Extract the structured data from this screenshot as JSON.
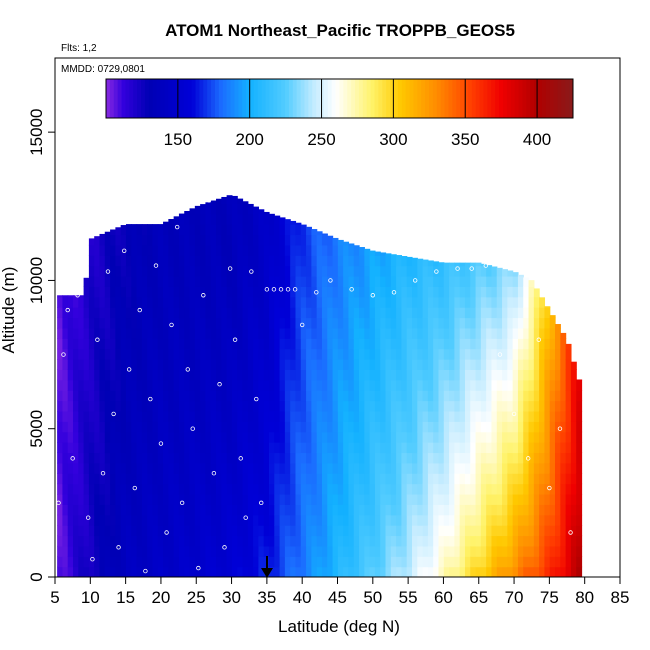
{
  "chart_data": {
    "type": "heatmap",
    "title": "ATOM1 Northeast_Pacific TROPPB_GEOS5",
    "flights_label": "Flts: 1,2",
    "dates_label": "MMDD: 0729,0801",
    "xlabel": "Latitude (deg N)",
    "ylabel": "Altitude (m)",
    "xlim": [
      5,
      85
    ],
    "ylim": [
      0,
      17500
    ],
    "x_ticks": [
      5,
      10,
      15,
      20,
      25,
      30,
      35,
      40,
      45,
      50,
      55,
      60,
      65,
      70,
      75,
      80,
      85
    ],
    "y_ticks": [
      0,
      5000,
      10000,
      15000
    ],
    "colorbar": {
      "range": [
        100,
        425
      ],
      "ticks": [
        150,
        200,
        250,
        300,
        350,
        400
      ],
      "stops": [
        {
          "v": 100,
          "c": "#8a2be2"
        },
        {
          "v": 112,
          "c": "#3300dd"
        },
        {
          "v": 130,
          "c": "#0000b4"
        },
        {
          "v": 160,
          "c": "#0000d8"
        },
        {
          "v": 180,
          "c": "#1b6bff"
        },
        {
          "v": 200,
          "c": "#13b1ff"
        },
        {
          "v": 225,
          "c": "#52ccff"
        },
        {
          "v": 245,
          "c": "#c5ecff"
        },
        {
          "v": 260,
          "c": "#ffffff"
        },
        {
          "v": 285,
          "c": "#fff36a"
        },
        {
          "v": 305,
          "c": "#ffc800"
        },
        {
          "v": 330,
          "c": "#ff8c00"
        },
        {
          "v": 355,
          "c": "#ff3c00"
        },
        {
          "v": 375,
          "c": "#f00000"
        },
        {
          "v": 400,
          "c": "#b00000"
        },
        {
          "v": 425,
          "c": "#8a1a1a"
        }
      ]
    },
    "profile": {
      "lat": [
        5,
        10,
        15,
        20,
        25,
        30,
        35,
        40,
        45,
        50,
        55,
        60,
        65,
        70,
        72.5,
        75,
        77.5,
        80
      ],
      "top_altitude": [
        0,
        11400,
        11900,
        11900,
        12500,
        12900,
        12300,
        11900,
        11400,
        11000,
        10800,
        10600,
        10600,
        10300,
        10000,
        9000,
        8000,
        6000
      ],
      "troppb_surface": [
        105,
        125,
        140,
        145,
        150,
        155,
        165,
        185,
        205,
        225,
        245,
        270,
        300,
        330,
        345,
        360,
        380,
        405
      ],
      "troppb_aloft": [
        105,
        120,
        130,
        135,
        135,
        135,
        145,
        170,
        185,
        195,
        205,
        210,
        220,
        230,
        260,
        300,
        340,
        380
      ]
    },
    "series": [
      {
        "type": "scatter",
        "x": [
          5.5,
          6.2,
          6.8,
          7.5,
          8.2,
          9.0,
          9.7,
          10.3,
          11.0,
          11.8,
          12.5,
          13.3,
          14.0,
          14.8,
          15.5,
          16.3,
          17.0,
          17.8,
          18.5,
          19.3,
          20.0,
          20.8,
          21.5,
          22.3,
          23.0,
          23.8,
          24.5,
          25.3,
          26.0,
          26.8,
          27.5,
          28.3,
          29.0,
          29.8,
          30.5,
          31.3,
          32.0,
          32.8,
          33.5,
          34.2,
          35.0,
          36.0,
          37.0,
          38.0,
          39.0,
          40.0,
          42.0,
          44.0,
          47.0,
          50.0,
          53.0,
          56.0,
          59.0,
          62.0,
          64.0,
          66.0,
          68.0,
          70.0,
          72.0,
          73.5,
          75.0,
          76.5,
          78.0
        ],
        "y": [
          2500,
          7500,
          9000,
          4000,
          9500,
          11300,
          2000,
          600,
          8000,
          3500,
          10300,
          5500,
          1000,
          11000,
          7000,
          3000,
          9000,
          200,
          6000,
          10500,
          4500,
          1500,
          8500,
          11800,
          2500,
          7000,
          5000,
          300,
          9500,
          12700,
          3500,
          6500,
          1000,
          10400,
          8000,
          4000,
          2000,
          10300,
          6000,
          2500,
          9700,
          9700,
          9700,
          9700,
          9700,
          8500,
          9600,
          10000,
          9700,
          9500,
          9600,
          10000,
          10300,
          10400,
          10400,
          10500,
          7500,
          5500,
          4000,
          8000,
          3000,
          5000,
          1500
        ]
      }
    ]
  }
}
